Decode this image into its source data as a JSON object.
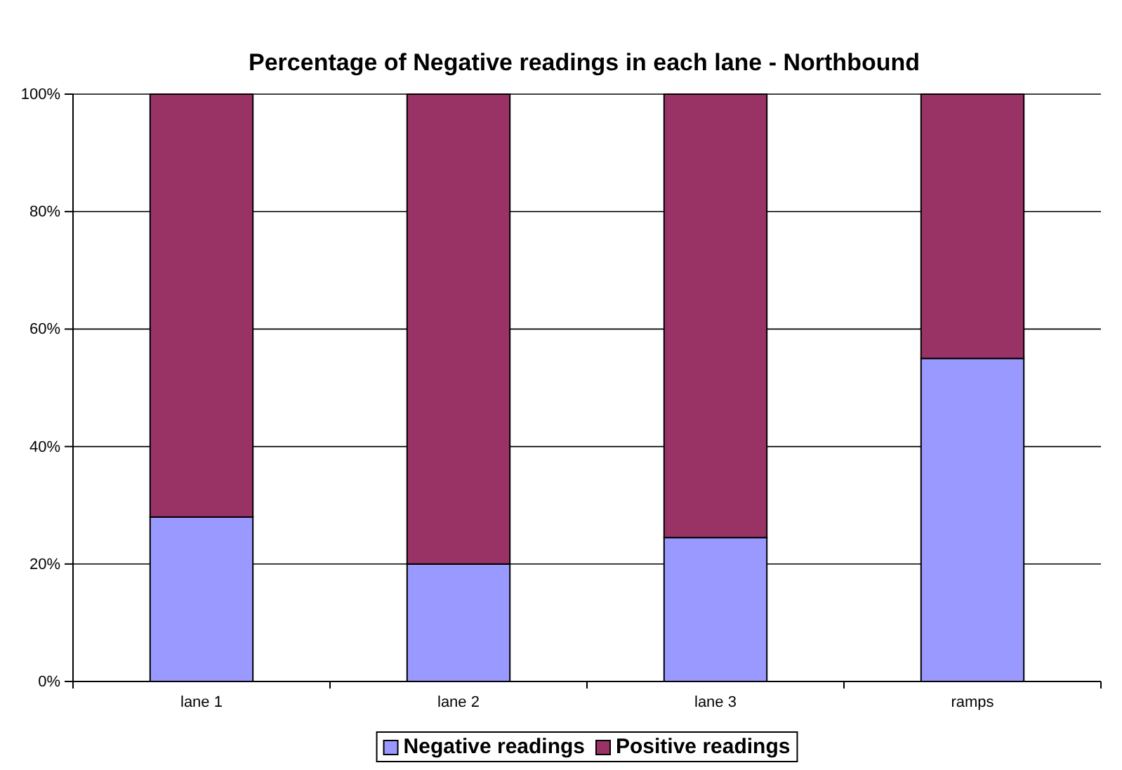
{
  "chart_data": {
    "type": "bar",
    "stacked": true,
    "title": "Percentage of Negative readings in each lane - Northbound",
    "categories": [
      "lane 1",
      "lane 2",
      "lane 3",
      "ramps"
    ],
    "series": [
      {
        "name": "Negative readings",
        "color": "#9999ff",
        "values": [
          28,
          20,
          24.5,
          55
        ]
      },
      {
        "name": "Positive readings",
        "color": "#993366",
        "values": [
          72,
          80,
          75.5,
          45
        ]
      }
    ],
    "ylim": [
      0,
      100
    ],
    "yticks": [
      {
        "value": 0,
        "label": "0%"
      },
      {
        "value": 20,
        "label": "20%"
      },
      {
        "value": 40,
        "label": "40%"
      },
      {
        "value": 60,
        "label": "60%"
      },
      {
        "value": 80,
        "label": "80%"
      },
      {
        "value": 100,
        "label": "100%"
      }
    ],
    "grid": "y",
    "legend": "bottom"
  }
}
